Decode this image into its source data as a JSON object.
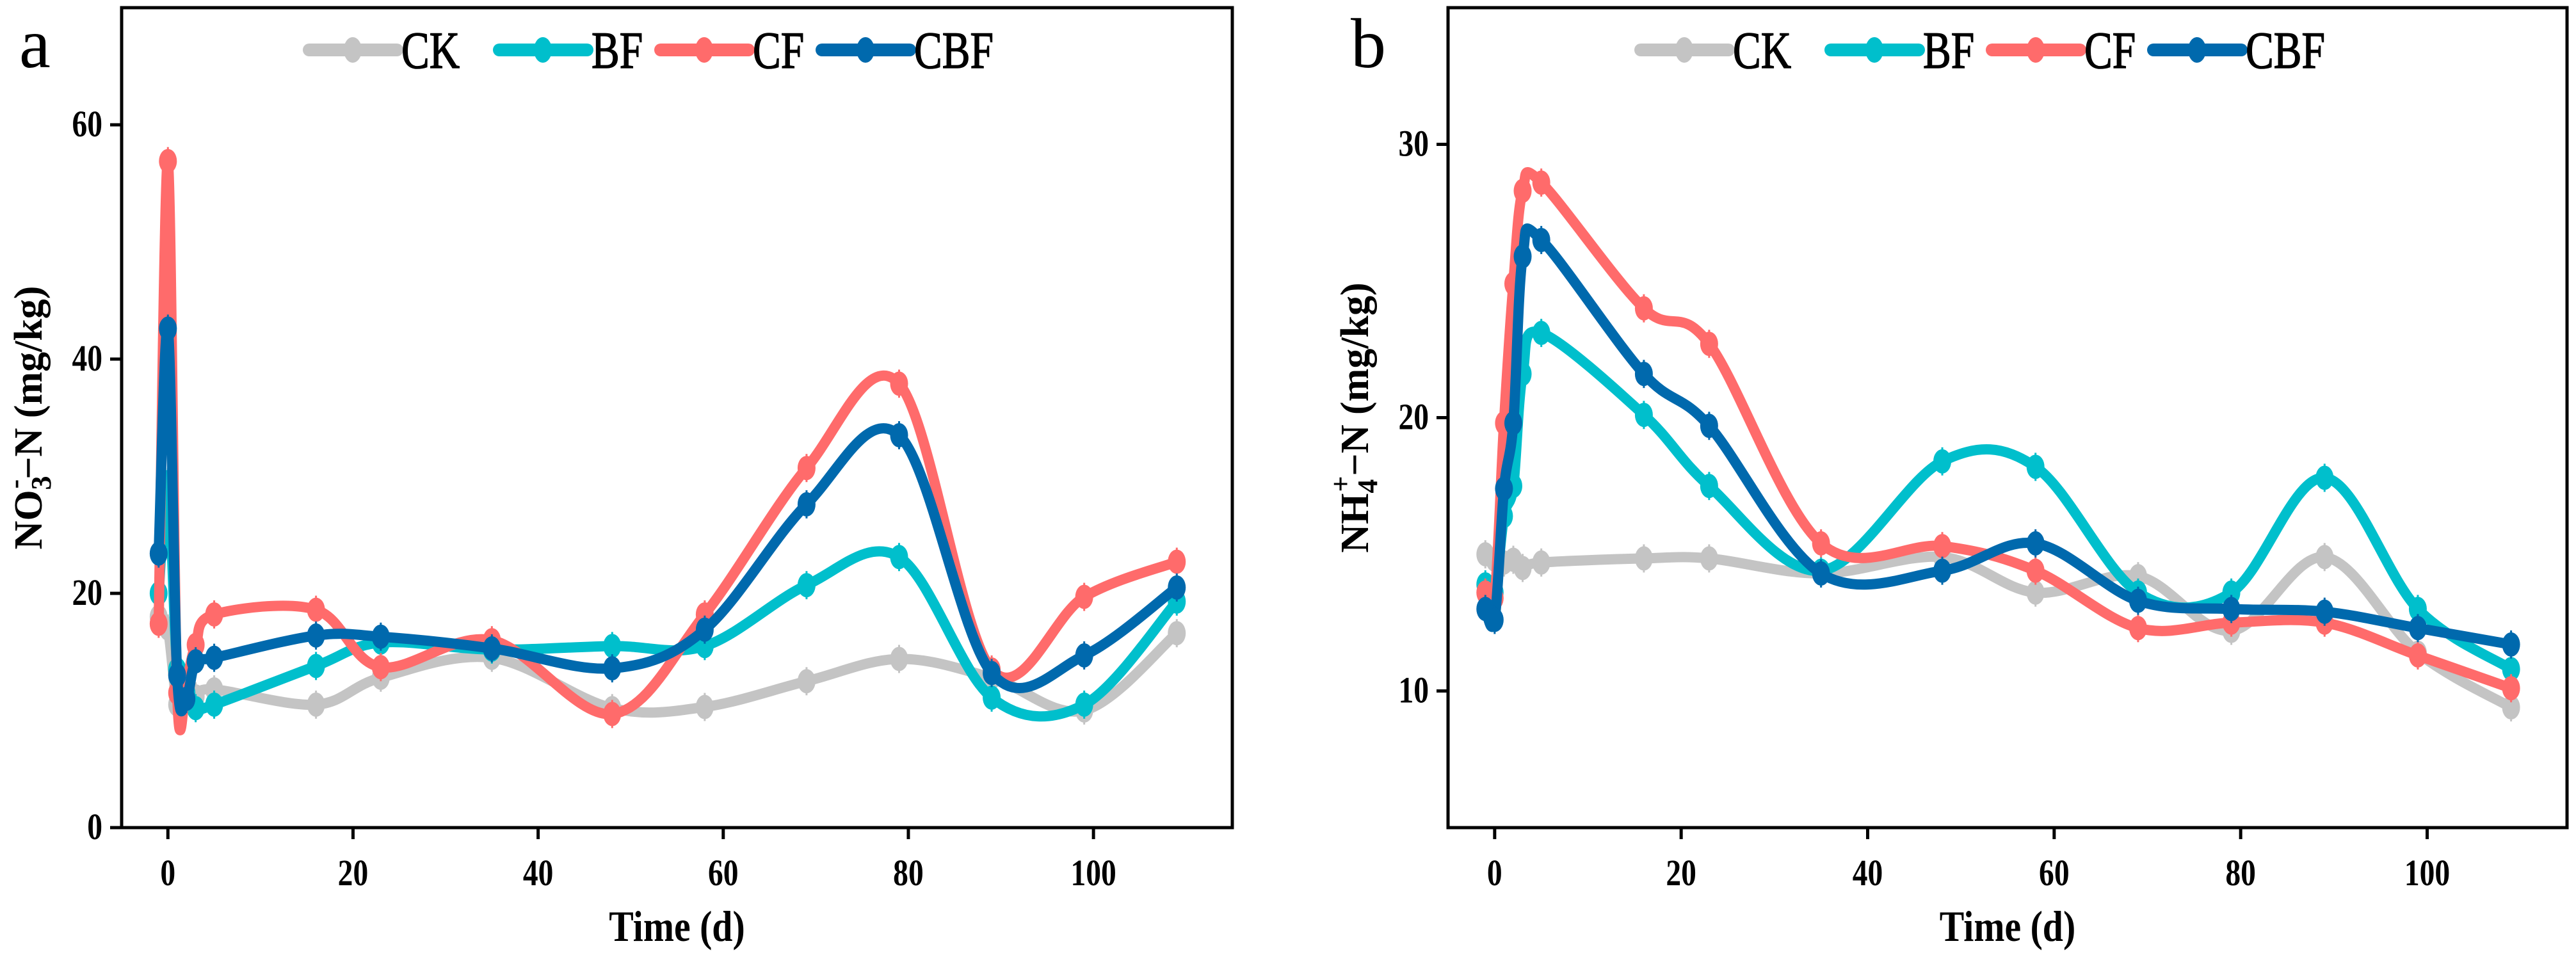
{
  "colors": {
    "CK": "#c4c4c4",
    "BF": "#00bfcc",
    "CF": "#ff6b6b",
    "CBF": "#0069ad"
  },
  "chart_data": [
    {
      "panel_label": "a",
      "type": "line",
      "title": "",
      "xlabel": "Time (d)",
      "ylabel_main": "NO",
      "ylabel_sub": "3",
      "ylabel_sup": "-",
      "ylabel_rest": "−N (mg/kg)",
      "xlim": [
        -5,
        115
      ],
      "ylim": [
        0,
        70
      ],
      "xticks": [
        0,
        20,
        40,
        60,
        80,
        100
      ],
      "yticks": [
        0,
        20,
        40,
        60
      ],
      "legend": "top-center",
      "x": [
        -1,
        0,
        1,
        2,
        3,
        5,
        16,
        23,
        35,
        48,
        58,
        69,
        79,
        89,
        99,
        109
      ],
      "series": [
        {
          "name": "CK",
          "values": [
            18,
            17,
            10.5,
            11,
            11.2,
            11.8,
            10.5,
            12.8,
            14.5,
            10.2,
            10.3,
            12.5,
            14.4,
            12.8,
            10,
            16.6
          ]
        },
        {
          "name": "BF",
          "values": [
            20,
            29.5,
            13.5,
            11.5,
            10.2,
            10.5,
            13.8,
            15.8,
            15.2,
            15.5,
            15.5,
            20.7,
            23.1,
            11.1,
            10.5,
            19.3
          ]
        },
        {
          "name": "CF",
          "values": [
            17.4,
            56.9,
            11.5,
            12.5,
            15.6,
            18.2,
            18.6,
            13.7,
            16,
            9.7,
            18.2,
            30.7,
            37.9,
            13.5,
            19.7,
            22.7
          ]
        },
        {
          "name": "CBF",
          "values": [
            23.4,
            42.6,
            13,
            11,
            14.2,
            14.5,
            16.4,
            16.3,
            15.3,
            13.6,
            16.9,
            27.6,
            33.5,
            13.2,
            14.7,
            20.5
          ]
        }
      ]
    },
    {
      "panel_label": "b",
      "type": "line",
      "title": "",
      "xlabel": "Time (d)",
      "ylabel_main": "NH",
      "ylabel_sub": "4",
      "ylabel_sup": "+",
      "ylabel_rest": "−N (mg/kg)",
      "xlim": [
        -5,
        115
      ],
      "ylim": [
        5,
        35
      ],
      "xticks": [
        0,
        20,
        40,
        60,
        80,
        100
      ],
      "yticks": [
        10,
        20,
        30
      ],
      "legend": "top-center",
      "x": [
        -1,
        0,
        1,
        2,
        3,
        5,
        16,
        23,
        35,
        48,
        58,
        69,
        79,
        89,
        99,
        109
      ],
      "series": [
        {
          "name": "CK",
          "values": [
            15,
            14.8,
            14.7,
            14.8,
            14.5,
            14.7,
            14.85,
            14.85,
            14.3,
            14.9,
            13.6,
            14.2,
            12.2,
            14.9,
            11.4,
            9.4
          ]
        },
        {
          "name": "BF",
          "values": [
            13.9,
            13.6,
            16.4,
            17.5,
            21.6,
            23.1,
            20.1,
            17.5,
            14.4,
            18.4,
            18.2,
            13.6,
            13.6,
            17.8,
            13,
            10.8
          ]
        },
        {
          "name": "CF",
          "values": [
            13.6,
            13.4,
            19.8,
            24.9,
            28.3,
            28.6,
            24,
            22.7,
            15.4,
            15.3,
            14.4,
            12.3,
            12.5,
            12.5,
            11.3,
            10.1
          ]
        },
        {
          "name": "CBF",
          "values": [
            13,
            12.6,
            17.4,
            19.8,
            25.9,
            26.5,
            21.6,
            19.7,
            14.3,
            14.4,
            15.4,
            13.3,
            13,
            12.9,
            12.3,
            11.7
          ]
        }
      ]
    }
  ]
}
